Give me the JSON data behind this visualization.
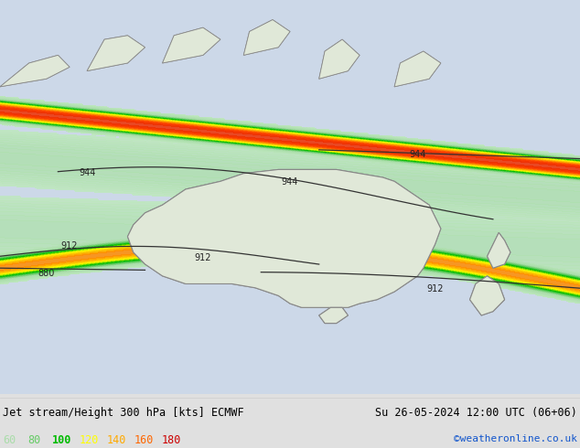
{
  "title_left": "Jet stream/Height 300 hPa [kts] ECMWF",
  "title_right": "Su 26-05-2024 12:00 UTC (06+06)",
  "credit": "©weatheronline.co.uk",
  "legend_values": [
    60,
    80,
    100,
    120,
    140,
    160,
    180
  ],
  "legend_colors": [
    "#aaffaa",
    "#66dd66",
    "#00cc00",
    "#ffff00",
    "#ffaa00",
    "#ff4400",
    "#cc0000"
  ],
  "bg_color": "#e8e8e8",
  "map_bg": "#d0d8e8",
  "land_color": "#e8e8e8",
  "coastline_color": "#888888",
  "contour_color": "#404040",
  "text_color": "#000000",
  "credit_color": "#1155cc",
  "figsize": [
    6.34,
    4.9
  ],
  "dpi": 100
}
